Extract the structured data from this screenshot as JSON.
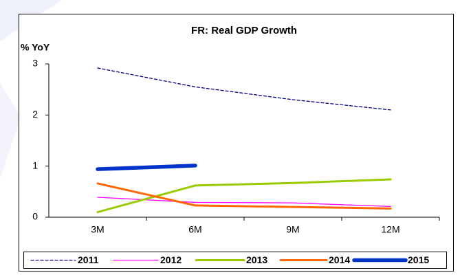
{
  "chart_data": {
    "type": "line",
    "title": "FR: Real GDP Growth",
    "y_label": "% YoY",
    "categories": [
      "3M",
      "6M",
      "9M",
      "12M"
    ],
    "series": [
      {
        "name": "2011",
        "color": "#000080",
        "style": "dashed",
        "values": [
          2.92,
          2.55,
          2.3,
          2.1
        ]
      },
      {
        "name": "2012",
        "color": "#ff00ff",
        "values": [
          0.39,
          0.29,
          0.28,
          0.21
        ]
      },
      {
        "name": "2013",
        "color": "#99cc00",
        "values": [
          0.1,
          0.62,
          0.67,
          0.74
        ]
      },
      {
        "name": "2014",
        "color": "#ff6600",
        "values": [
          0.66,
          0.23,
          0.2,
          0.17
        ]
      },
      {
        "name": "2015",
        "color": "#0033cc",
        "values": [
          0.94,
          1.01,
          null,
          null
        ]
      }
    ],
    "ylim": [
      0,
      3
    ],
    "yticks": [
      0,
      1,
      2,
      3
    ],
    "legend": "bottom"
  }
}
